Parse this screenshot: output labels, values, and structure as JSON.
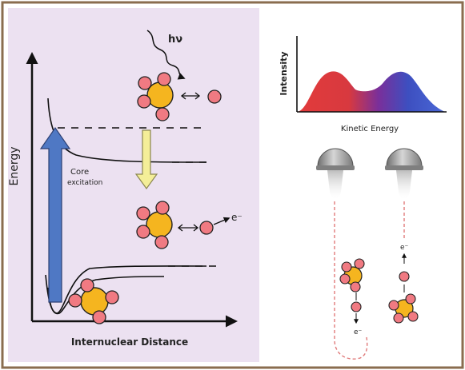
{
  "left_panel": {
    "y_axis_label": "Energy",
    "x_axis_label": "Internuclear Distance",
    "photon_label": "hν",
    "excitation_label_line1": "Core",
    "excitation_label_line2": "excitation",
    "electron_label": "e⁻"
  },
  "right_panel": {
    "spectrum_y_label": "Intensity",
    "spectrum_x_label": "Kinetic Energy",
    "electron_label_left": "e⁻",
    "electron_label_right": "e⁻"
  },
  "colors": {
    "border": "#8a6d4f",
    "left_bg": "#ece1f1",
    "right_bg": "#ffffff",
    "core_atom": "#f5b51f",
    "ligand_atom": "#f07a82",
    "excitation_arrow": "#4f78c4",
    "decay_arrow": "#f4ee98",
    "spectrum_red": "#e23b3b",
    "spectrum_blue": "#3c57c8",
    "trajectory": "#e07a7a",
    "detector": "#9a9a9a"
  }
}
